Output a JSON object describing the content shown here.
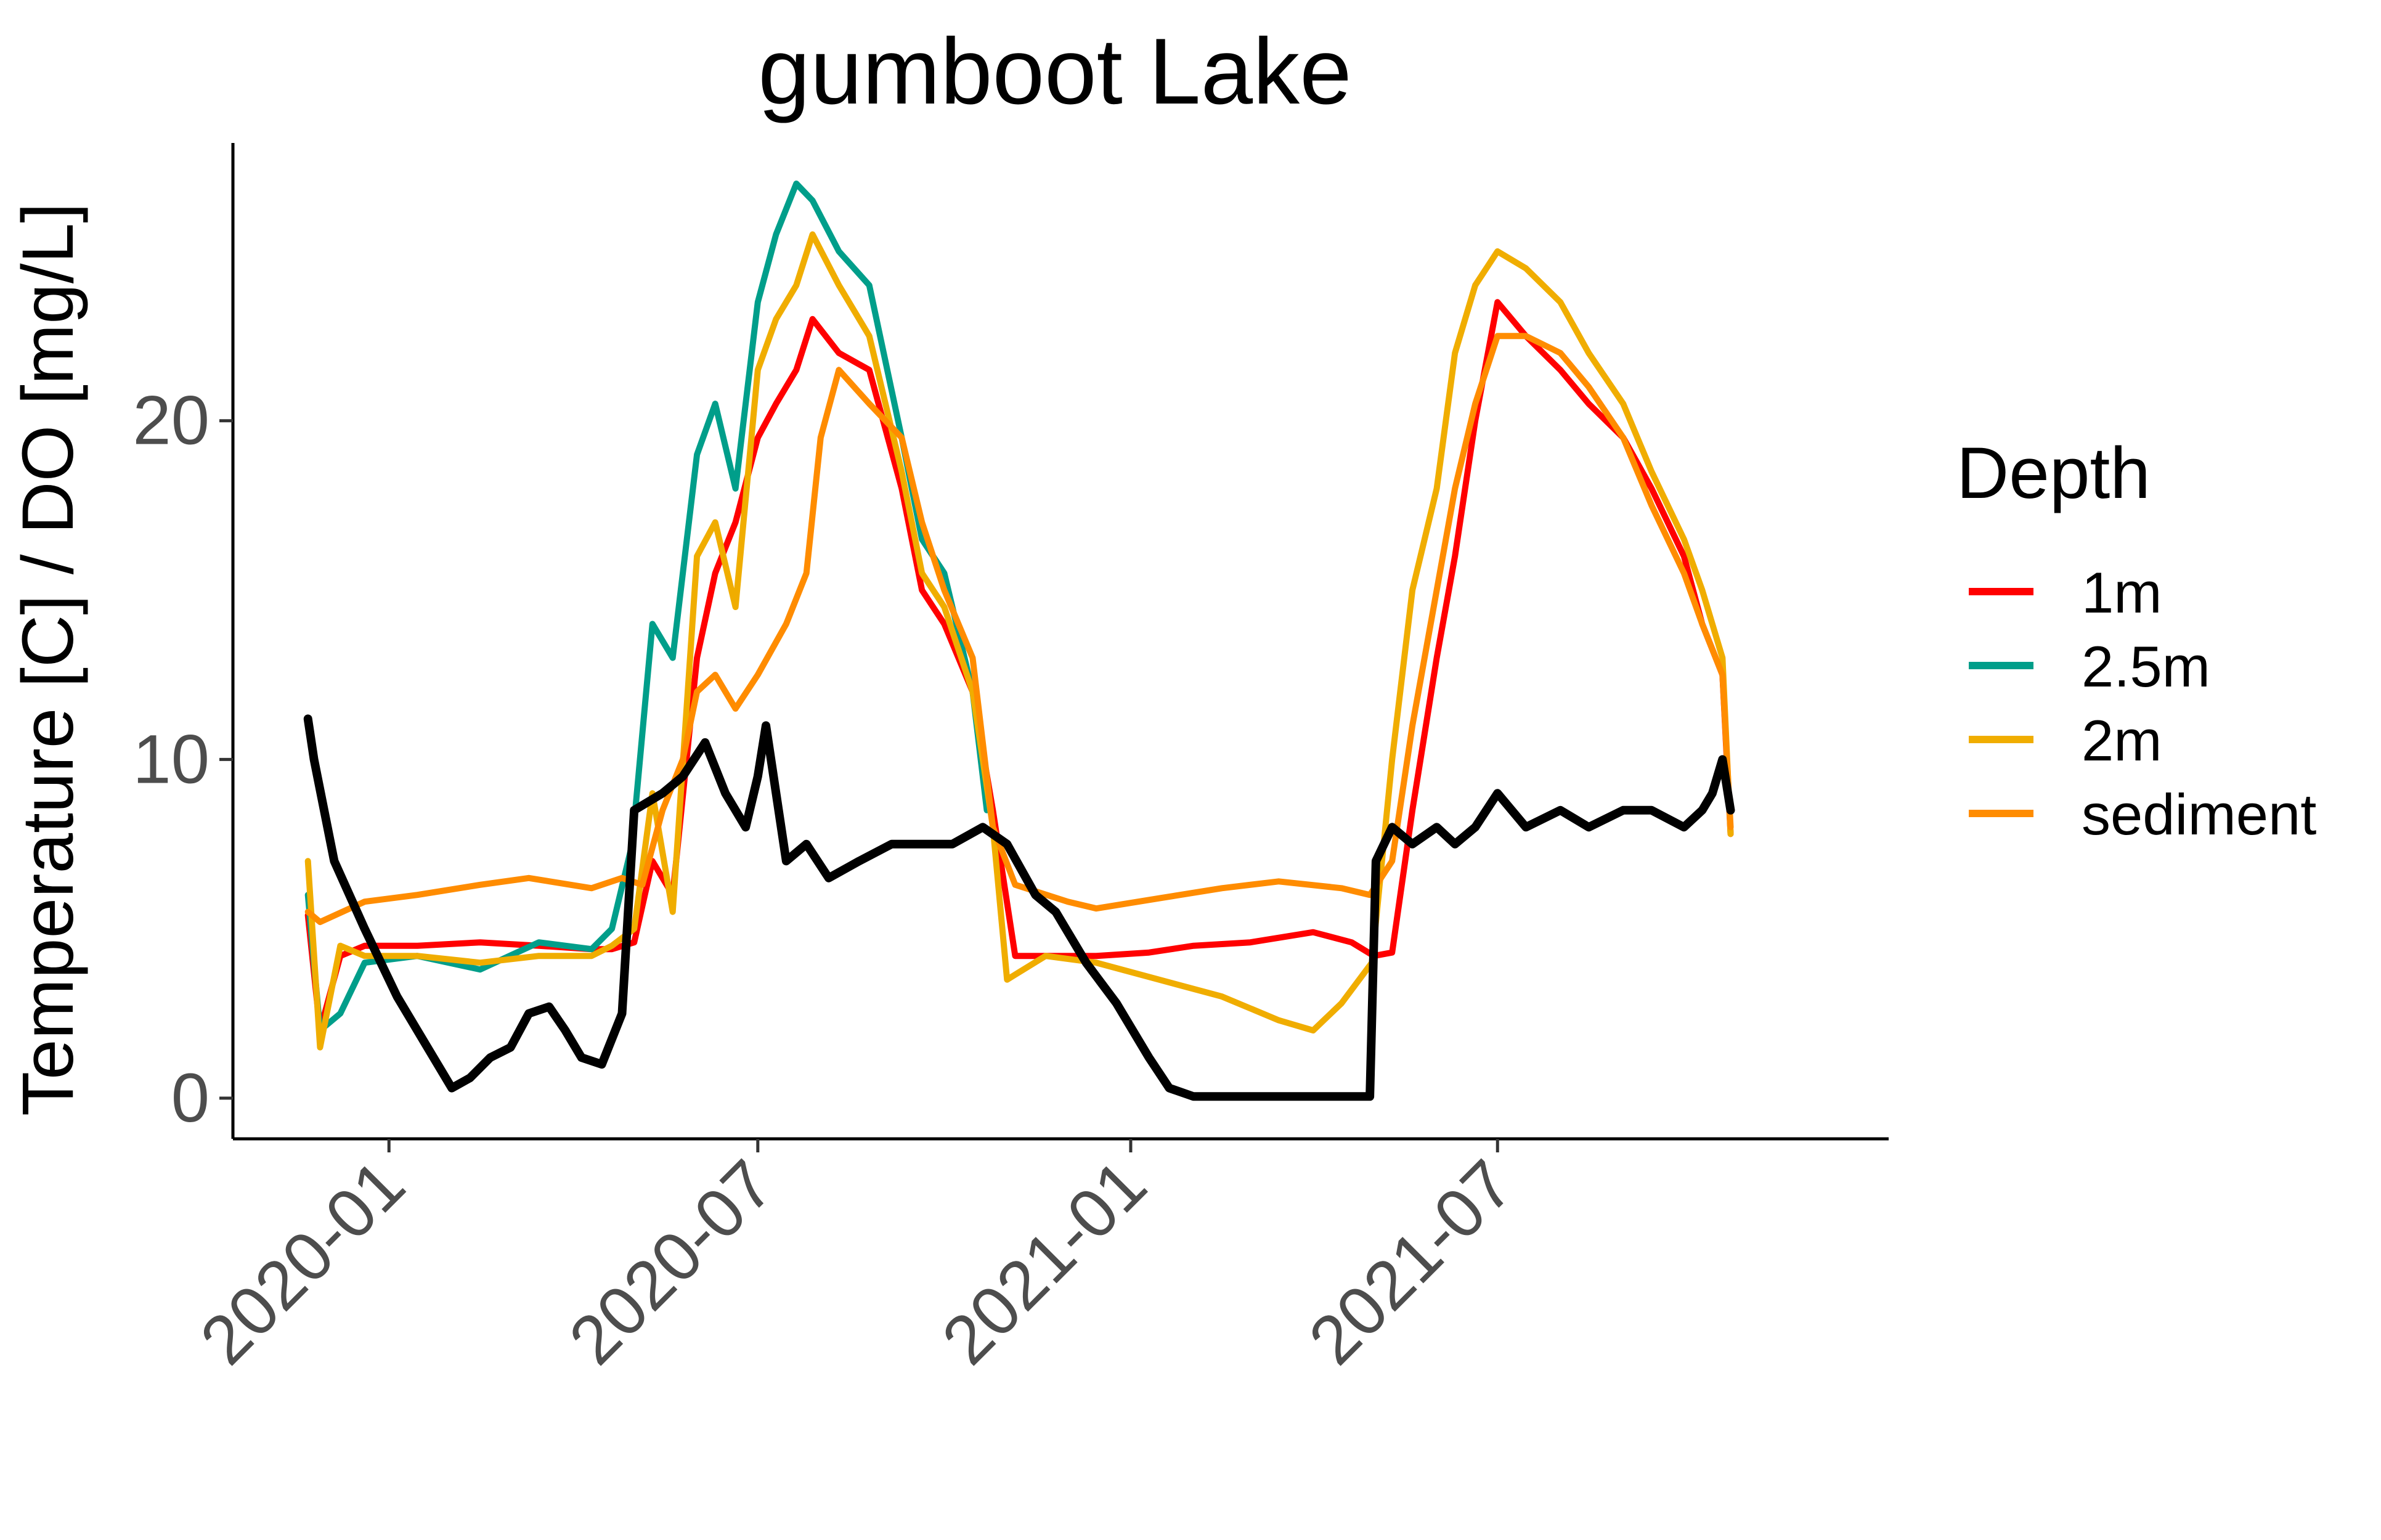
{
  "chart_data": {
    "type": "line",
    "title": "gumboot Lake",
    "xlabel": "",
    "ylabel": "Temperature [C] / DO [mg/L]",
    "x_ticks": [
      "2020-01",
      "2020-07",
      "2021-01",
      "2021-07"
    ],
    "y_ticks": [
      0,
      10,
      20
    ],
    "xlim": [
      "2019-10-16",
      "2022-01-10"
    ],
    "ylim": [
      -1.2,
      28.2
    ],
    "grid": false,
    "legend": {
      "title": "Depth",
      "position": "right"
    },
    "series": [
      {
        "name": "1m",
        "color": "#ff0000",
        "x": [
          "2019-11-22",
          "2019-11-28",
          "2019-12-08",
          "2019-12-20",
          "2020-01-15",
          "2020-02-15",
          "2020-03-15",
          "2020-04-10",
          "2020-04-20",
          "2020-05-01",
          "2020-05-10",
          "2020-05-20",
          "2020-06-01",
          "2020-06-10",
          "2020-06-20",
          "2020-07-01",
          "2020-07-10",
          "2020-07-20",
          "2020-07-28",
          "2020-08-10",
          "2020-08-25",
          "2020-09-10",
          "2020-09-20",
          "2020-10-01",
          "2020-10-15",
          "2020-10-25",
          "2020-11-05",
          "2020-12-01",
          "2020-12-15",
          "2021-01-10",
          "2021-02-01",
          "2021-03-01",
          "2021-04-01",
          "2021-04-20",
          "2021-05-01",
          "2021-05-10",
          "2021-05-20",
          "2021-06-01",
          "2021-06-10",
          "2021-06-20",
          "2021-07-01",
          "2021-07-15",
          "2021-08-01",
          "2021-08-15",
          "2021-09-01",
          "2021-09-15",
          "2021-10-01",
          "2021-10-10",
          "2021-10-20",
          "2021-10-24"
        ],
        "y": [
          5.4,
          2.0,
          4.2,
          4.5,
          4.5,
          4.6,
          4.5,
          4.4,
          4.4,
          4.6,
          7.0,
          6.0,
          13.0,
          15.5,
          17.0,
          19.5,
          20.5,
          21.5,
          23.0,
          22.0,
          21.5,
          18.0,
          15.0,
          14.0,
          12.0,
          8.5,
          4.2,
          4.2,
          4.2,
          4.3,
          4.5,
          4.6,
          4.9,
          4.6,
          4.2,
          4.3,
          8.5,
          13.0,
          16.0,
          20.0,
          23.5,
          22.5,
          21.5,
          20.5,
          19.5,
          18.0,
          16.0,
          14.0,
          12.5,
          7.8
        ]
      },
      {
        "name": "2.5m",
        "color": "#009e8a",
        "x": [
          "2019-11-22",
          "2019-11-28",
          "2019-12-08",
          "2019-12-20",
          "2020-01-15",
          "2020-02-15",
          "2020-03-15",
          "2020-04-10",
          "2020-04-20",
          "2020-04-30",
          "2020-05-10",
          "2020-05-20",
          "2020-06-01",
          "2020-06-10",
          "2020-06-20",
          "2020-07-01",
          "2020-07-10",
          "2020-07-20",
          "2020-07-28",
          "2020-08-10",
          "2020-08-25",
          "2020-09-10",
          "2020-09-20",
          "2020-10-01",
          "2020-10-15",
          "2020-10-22"
        ],
        "y": [
          6.0,
          2.0,
          2.5,
          4.0,
          4.2,
          3.8,
          4.6,
          4.4,
          5.0,
          7.5,
          14.0,
          13.0,
          19.0,
          20.5,
          18.0,
          23.5,
          25.5,
          27.0,
          26.5,
          25.0,
          24.0,
          19.5,
          16.5,
          15.5,
          12.0,
          8.5
        ]
      },
      {
        "name": "2m",
        "color": "#f0ad00",
        "x": [
          "2019-11-22",
          "2019-11-28",
          "2019-12-08",
          "2019-12-20",
          "2020-01-15",
          "2020-02-15",
          "2020-03-15",
          "2020-04-10",
          "2020-04-20",
          "2020-05-01",
          "2020-05-10",
          "2020-05-20",
          "2020-06-01",
          "2020-06-10",
          "2020-06-20",
          "2020-07-01",
          "2020-07-10",
          "2020-07-20",
          "2020-07-28",
          "2020-08-10",
          "2020-08-25",
          "2020-09-10",
          "2020-09-20",
          "2020-10-01",
          "2020-10-15",
          "2020-10-25",
          "2020-11-01",
          "2020-11-20",
          "2020-12-15",
          "2021-01-15",
          "2021-02-15",
          "2021-03-15",
          "2021-04-01",
          "2021-04-15",
          "2021-04-30",
          "2021-05-10",
          "2021-05-20",
          "2021-06-01",
          "2021-06-10",
          "2021-06-20",
          "2021-07-01",
          "2021-07-15",
          "2021-08-01",
          "2021-08-15",
          "2021-09-01",
          "2021-09-15",
          "2021-10-01",
          "2021-10-10",
          "2021-10-20",
          "2021-10-24"
        ],
        "y": [
          7.0,
          1.5,
          4.5,
          4.2,
          4.2,
          4.0,
          4.2,
          4.2,
          4.5,
          5.0,
          9.0,
          5.5,
          16.0,
          17.0,
          14.5,
          21.5,
          23.0,
          24.0,
          25.5,
          24.0,
          22.5,
          18.5,
          15.5,
          14.5,
          12.0,
          8.0,
          3.5,
          4.2,
          4.0,
          3.5,
          3.0,
          2.3,
          2.0,
          2.8,
          4.0,
          10.0,
          15.0,
          18.0,
          22.0,
          24.0,
          25.0,
          24.5,
          23.5,
          22.0,
          20.5,
          18.5,
          16.5,
          15.0,
          13.0,
          7.8
        ]
      },
      {
        "name": "sediment",
        "color": "#ff8c00",
        "x": [
          "2019-11-22",
          "2019-11-28",
          "2019-12-20",
          "2020-01-15",
          "2020-02-15",
          "2020-03-10",
          "2020-04-10",
          "2020-04-25",
          "2020-05-05",
          "2020-05-15",
          "2020-05-25",
          "2020-06-01",
          "2020-06-10",
          "2020-06-20",
          "2020-07-01",
          "2020-07-15",
          "2020-07-25",
          "2020-08-01",
          "2020-08-10",
          "2020-08-25",
          "2020-09-10",
          "2020-09-20",
          "2020-10-01",
          "2020-10-15",
          "2020-10-25",
          "2020-11-05",
          "2020-12-01",
          "2020-12-15",
          "2021-01-15",
          "2021-02-15",
          "2021-03-15",
          "2021-04-15",
          "2021-04-29",
          "2021-05-10",
          "2021-05-20",
          "2021-06-01",
          "2021-06-10",
          "2021-06-20",
          "2021-07-01",
          "2021-07-15",
          "2021-08-01",
          "2021-08-15",
          "2021-09-01",
          "2021-09-15",
          "2021-10-01",
          "2021-10-10",
          "2021-10-20",
          "2021-10-24"
        ],
        "y": [
          5.5,
          5.2,
          5.8,
          6.0,
          6.3,
          6.5,
          6.2,
          6.5,
          6.3,
          8.5,
          10.0,
          12.0,
          12.5,
          11.5,
          12.5,
          14.0,
          15.5,
          19.5,
          21.5,
          20.5,
          19.5,
          17.0,
          15.0,
          13.0,
          8.0,
          6.3,
          5.8,
          5.6,
          5.9,
          6.2,
          6.4,
          6.2,
          6.0,
          7.0,
          11.0,
          15.0,
          18.0,
          20.5,
          22.5,
          22.5,
          22.0,
          21.0,
          19.5,
          17.5,
          15.5,
          14.0,
          12.5,
          8.0
        ]
      },
      {
        "name": "",
        "color": "#000000",
        "x": [
          "2019-11-22",
          "2019-11-25",
          "2019-12-05",
          "2019-12-20",
          "2020-01-05",
          "2020-01-20",
          "2020-02-01",
          "2020-02-10",
          "2020-02-20",
          "2020-03-01",
          "2020-03-10",
          "2020-03-20",
          "2020-03-28",
          "2020-04-05",
          "2020-04-15",
          "2020-04-25",
          "2020-05-01",
          "2020-05-15",
          "2020-05-25",
          "2020-06-05",
          "2020-06-15",
          "2020-06-25",
          "2020-07-01",
          "2020-07-05",
          "2020-07-15",
          "2020-07-25",
          "2020-08-05",
          "2020-08-20",
          "2020-09-05",
          "2020-09-20",
          "2020-10-05",
          "2020-10-20",
          "2020-11-01",
          "2020-11-15",
          "2020-11-25",
          "2020-12-10",
          "2020-12-25",
          "2021-01-10",
          "2021-01-20",
          "2021-02-01",
          "2021-03-01",
          "2021-04-01",
          "2021-04-29",
          "2021-05-02",
          "2021-05-10",
          "2021-05-20",
          "2021-06-01",
          "2021-06-10",
          "2021-06-20",
          "2021-07-01",
          "2021-07-15",
          "2021-08-01",
          "2021-08-15",
          "2021-09-01",
          "2021-09-15",
          "2021-10-01",
          "2021-10-10",
          "2021-10-15",
          "2021-10-20",
          "2021-10-24"
        ],
        "y": [
          11.2,
          10.0,
          7.0,
          5.0,
          3.0,
          1.5,
          0.3,
          0.6,
          1.2,
          1.5,
          2.5,
          2.7,
          2.0,
          1.2,
          1.0,
          2.5,
          8.5,
          9.0,
          9.5,
          10.5,
          9.0,
          8.0,
          9.5,
          11.0,
          7.0,
          7.5,
          6.5,
          7.0,
          7.5,
          7.5,
          7.5,
          8.0,
          7.5,
          6.0,
          5.5,
          4.0,
          2.8,
          1.2,
          0.3,
          0.05,
          0.05,
          0.05,
          0.05,
          7.0,
          8.0,
          7.5,
          8.0,
          7.5,
          8.0,
          9.0,
          8.0,
          8.5,
          8.0,
          8.5,
          8.5,
          8.0,
          8.5,
          9.0,
          10.0,
          8.5
        ]
      }
    ]
  }
}
